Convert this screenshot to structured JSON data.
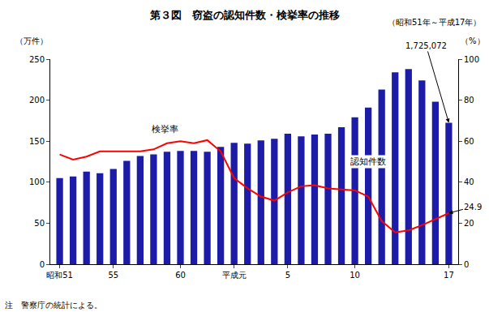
{
  "chart_data": {
    "type": "bar",
    "title": "第３図　窃盗の認知件数・検挙率の推移",
    "subtitle": "（昭和51年～平成17年）",
    "ylabel": "（万件）",
    "y2label": "（%）",
    "note": "注　警察庁の統計による。",
    "categories": [
      "昭和51",
      null,
      null,
      null,
      "55",
      null,
      null,
      null,
      null,
      "60",
      null,
      null,
      null,
      "平成元",
      null,
      null,
      null,
      "5",
      null,
      null,
      null,
      null,
      "10",
      null,
      null,
      null,
      null,
      null,
      null,
      "17"
    ],
    "series": [
      {
        "name": "認知件数",
        "type": "bar",
        "color": "#1c1ca8",
        "values": [
          105,
          107,
          113,
          111,
          116,
          126,
          132,
          134,
          137,
          138,
          138,
          137,
          143,
          148,
          147,
          151,
          153,
          159,
          156,
          158,
          159,
          167,
          179,
          191,
          213,
          234,
          238,
          224,
          198,
          172.5072
        ]
      },
      {
        "name": "検挙率",
        "type": "line",
        "axis": "y2",
        "color": "#ff0000",
        "values": [
          53.5,
          51,
          52.5,
          55,
          55,
          55,
          55,
          56,
          59,
          60,
          59,
          60.5,
          55,
          42,
          37,
          33,
          31,
          35,
          38,
          38.5,
          37,
          36.5,
          36,
          33,
          21,
          15.5,
          16.5,
          19,
          22,
          24.9
        ]
      }
    ],
    "annotations": [
      {
        "text": "1,725,072",
        "series": "認知件数",
        "category": "17"
      },
      {
        "text": "24.9",
        "series": "検挙率",
        "category": "17"
      }
    ],
    "ylim": [
      0,
      250
    ],
    "yticks": [
      0,
      50,
      100,
      150,
      200,
      250
    ],
    "y2lim": [
      0,
      100
    ],
    "y2ticks": [
      0,
      20,
      40,
      60,
      80,
      100
    ],
    "grid": false
  }
}
